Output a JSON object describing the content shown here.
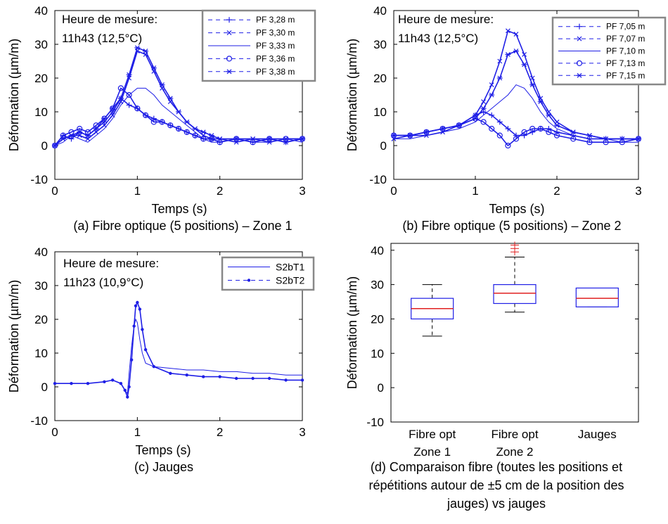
{
  "chart_data": [
    {
      "type": "line",
      "panel": "a",
      "caption": "(a) Fibre optique (5 positions) – Zone 1",
      "annotation": [
        "Heure de mesure:",
        "11h43 (12,5°C)"
      ],
      "xlabel": "Temps (s)",
      "ylabel": "Déformation (µm/m)",
      "xlim": [
        0,
        3
      ],
      "ylim": [
        -10,
        40
      ],
      "xticks": [
        "0",
        "1",
        "2",
        "3"
      ],
      "yticks": [
        "-10",
        "0",
        "10",
        "20",
        "30",
        "40"
      ],
      "legend_position": "top-right",
      "color": "#1f1fe6",
      "series": [
        {
          "name": "PF 3,28 m",
          "marker": "plus",
          "x": [
            0,
            0.1,
            0.2,
            0.3,
            0.4,
            0.5,
            0.6,
            0.7,
            0.8,
            0.9,
            1.0,
            1.1,
            1.2,
            1.3,
            1.4,
            1.5,
            1.6,
            1.7,
            1.8,
            1.9,
            2.0,
            2.2,
            2.4,
            2.6,
            2.8,
            3.0
          ],
          "y": [
            0,
            3,
            2,
            4,
            3,
            5,
            7,
            10,
            14,
            12,
            11,
            9,
            8,
            7,
            6,
            5,
            4,
            3,
            2,
            2,
            1,
            2,
            1,
            2,
            1,
            2
          ]
        },
        {
          "name": "PF 3,30 m",
          "marker": "x",
          "x": [
            0,
            0.1,
            0.2,
            0.3,
            0.4,
            0.5,
            0.6,
            0.7,
            0.8,
            0.9,
            1.0,
            1.1,
            1.2,
            1.3,
            1.4,
            1.5,
            1.6,
            1.7,
            1.8,
            1.9,
            2.0,
            2.2,
            2.4,
            2.6,
            2.8,
            3.0
          ],
          "y": [
            0,
            2,
            3,
            3,
            2,
            4,
            6,
            9,
            13,
            20,
            28,
            27,
            22,
            17,
            13,
            10,
            7,
            5,
            3,
            2,
            2,
            1,
            2,
            2,
            1,
            2
          ]
        },
        {
          "name": "PF 3,33 m",
          "marker": "none",
          "x": [
            0,
            0.1,
            0.2,
            0.3,
            0.4,
            0.5,
            0.6,
            0.7,
            0.8,
            0.9,
            1.0,
            1.1,
            1.2,
            1.3,
            1.4,
            1.5,
            1.6,
            1.7,
            1.8,
            1.9,
            2.0,
            2.2,
            2.4,
            2.6,
            2.8,
            3.0
          ],
          "y": [
            0,
            1,
            3,
            2,
            1,
            3,
            5,
            8,
            12,
            15,
            17,
            17,
            15,
            12,
            10,
            8,
            6,
            4,
            2,
            1,
            1,
            2,
            1,
            1,
            2,
            1
          ]
        },
        {
          "name": "PF 3,36 m",
          "marker": "circle",
          "x": [
            0,
            0.1,
            0.2,
            0.3,
            0.4,
            0.5,
            0.6,
            0.7,
            0.8,
            0.9,
            1.0,
            1.1,
            1.2,
            1.3,
            1.4,
            1.5,
            1.6,
            1.7,
            1.8,
            1.9,
            2.0,
            2.2,
            2.4,
            2.6,
            2.8,
            3.0
          ],
          "y": [
            0,
            3,
            4,
            5,
            4,
            6,
            8,
            11,
            17,
            15,
            11,
            9,
            7,
            7,
            6,
            5,
            4,
            3,
            2,
            2,
            1,
            2,
            1,
            2,
            2,
            2
          ]
        },
        {
          "name": "PF 3,38 m",
          "marker": "asterisk",
          "x": [
            0,
            0.1,
            0.2,
            0.3,
            0.4,
            0.5,
            0.6,
            0.7,
            0.8,
            0.9,
            1.0,
            1.1,
            1.2,
            1.3,
            1.4,
            1.5,
            1.6,
            1.7,
            1.8,
            1.9,
            2.0,
            2.2,
            2.4,
            2.6,
            2.8,
            3.0
          ],
          "y": [
            0,
            2,
            3,
            4,
            3,
            5,
            8,
            11,
            14,
            21,
            29,
            28,
            23,
            18,
            14,
            10,
            7,
            5,
            4,
            3,
            2,
            2,
            2,
            1,
            2,
            2
          ]
        }
      ]
    },
    {
      "type": "line",
      "panel": "b",
      "caption": "(b) Fibre optique (5 positions) – Zone 2",
      "annotation": [
        "Heure de mesure:",
        "11h43 (12,5°C)"
      ],
      "xlabel": "Temps (s)",
      "ylabel": "Déformation (µm/m)",
      "xlim": [
        0,
        3
      ],
      "ylim": [
        -10,
        40
      ],
      "xticks": [
        "0",
        "1",
        "2",
        "3"
      ],
      "yticks": [
        "-10",
        "0",
        "10",
        "20",
        "30",
        "40"
      ],
      "legend_position": "top-right",
      "color": "#1f1fe6",
      "series": [
        {
          "name": "PF 7,05 m",
          "marker": "plus",
          "x": [
            0,
            0.2,
            0.4,
            0.6,
            0.8,
            1.0,
            1.1,
            1.2,
            1.3,
            1.4,
            1.5,
            1.6,
            1.7,
            1.8,
            1.9,
            2.0,
            2.2,
            2.4,
            2.6,
            2.8,
            3.0
          ],
          "y": [
            3,
            3,
            4,
            5,
            6,
            9,
            10,
            9,
            7,
            5,
            3,
            3,
            4,
            5,
            5,
            4,
            3,
            2,
            2,
            2,
            2
          ]
        },
        {
          "name": "PF 7,07 m",
          "marker": "x",
          "x": [
            0,
            0.2,
            0.4,
            0.6,
            0.8,
            1.0,
            1.1,
            1.2,
            1.3,
            1.4,
            1.5,
            1.6,
            1.7,
            1.8,
            1.9,
            2.0,
            2.2,
            2.4,
            2.6,
            2.8,
            3.0
          ],
          "y": [
            2,
            3,
            3,
            4,
            6,
            9,
            13,
            18,
            25,
            34,
            33,
            27,
            20,
            14,
            10,
            7,
            4,
            3,
            2,
            2,
            2
          ]
        },
        {
          "name": "PF 7,10 m",
          "marker": "none",
          "x": [
            0,
            0.2,
            0.4,
            0.6,
            0.8,
            1.0,
            1.1,
            1.2,
            1.3,
            1.4,
            1.5,
            1.6,
            1.7,
            1.8,
            1.9,
            2.0,
            2.2,
            2.4,
            2.6,
            2.8,
            3.0
          ],
          "y": [
            2,
            2,
            3,
            4,
            5,
            7,
            9,
            11,
            13,
            15,
            18,
            17,
            14,
            10,
            7,
            5,
            3,
            2,
            2,
            1,
            1
          ]
        },
        {
          "name": "PF 7,13 m",
          "marker": "circle",
          "x": [
            0,
            0.2,
            0.4,
            0.6,
            0.8,
            1.0,
            1.1,
            1.2,
            1.3,
            1.4,
            1.5,
            1.6,
            1.7,
            1.8,
            1.9,
            2.0,
            2.2,
            2.4,
            2.6,
            2.8,
            3.0
          ],
          "y": [
            3,
            3,
            4,
            5,
            6,
            8,
            7,
            5,
            3,
            0,
            2,
            4,
            5,
            5,
            4,
            3,
            2,
            1,
            1,
            1,
            2
          ]
        },
        {
          "name": "PF 7,15 m",
          "marker": "asterisk",
          "x": [
            0,
            0.2,
            0.4,
            0.6,
            0.8,
            1.0,
            1.1,
            1.2,
            1.3,
            1.4,
            1.5,
            1.6,
            1.7,
            1.8,
            1.9,
            2.0,
            2.2,
            2.4,
            2.6,
            2.8,
            3.0
          ],
          "y": [
            3,
            3,
            4,
            5,
            6,
            8,
            11,
            15,
            20,
            27,
            28,
            24,
            18,
            13,
            9,
            6,
            4,
            3,
            2,
            2,
            2
          ]
        }
      ]
    },
    {
      "type": "line",
      "panel": "c",
      "caption": "(c) Jauges",
      "annotation": [
        "Heure de mesure:",
        "11h23 (10,9°C)"
      ],
      "xlabel": "Temps (s)",
      "ylabel": "Déformation (µm/m)",
      "xlim": [
        0,
        3
      ],
      "ylim": [
        -10,
        40
      ],
      "xticks": [
        "0",
        "1",
        "2",
        "3"
      ],
      "yticks": [
        "-10",
        "0",
        "10",
        "20",
        "30",
        "40"
      ],
      "legend_position": "top-right",
      "color": "#1f1fe6",
      "series": [
        {
          "name": "S2bT1",
          "marker": "none",
          "x": [
            0,
            0.2,
            0.4,
            0.6,
            0.7,
            0.8,
            0.85,
            0.88,
            0.9,
            0.93,
            0.96,
            0.98,
            1.0,
            1.03,
            1.06,
            1.1,
            1.2,
            1.4,
            1.6,
            1.8,
            2.0,
            2.2,
            2.4,
            2.6,
            2.8,
            3.0
          ],
          "y": [
            1,
            1,
            1,
            1.5,
            2,
            1,
            -1,
            -2,
            4,
            12,
            18,
            20,
            19,
            14,
            10,
            7,
            6,
            5.5,
            5,
            5,
            4.5,
            4.5,
            4,
            4,
            3.5,
            3.5
          ]
        },
        {
          "name": "S2bT2",
          "marker": "dot",
          "x": [
            0,
            0.2,
            0.4,
            0.6,
            0.7,
            0.8,
            0.85,
            0.88,
            0.9,
            0.93,
            0.96,
            0.98,
            1.0,
            1.03,
            1.06,
            1.1,
            1.2,
            1.4,
            1.6,
            1.8,
            2.0,
            2.2,
            2.4,
            2.6,
            2.8,
            3.0
          ],
          "y": [
            1,
            1,
            1,
            1.5,
            2,
            1,
            -1,
            -3,
            0,
            8,
            18,
            24,
            25,
            23,
            17,
            11,
            6,
            4,
            3.5,
            3,
            3,
            2.5,
            2.5,
            2.5,
            2,
            2
          ]
        }
      ]
    },
    {
      "type": "box",
      "panel": "d",
      "caption": [
        "(d) Comparaison fibre (toutes les positions et",
        "répétitions autour de ±5 cm de la position des",
        "jauges) vs jauges"
      ],
      "ylabel": "Déformation (µm/m)",
      "ylim": [
        -10,
        42
      ],
      "yticks": [
        "-10",
        "0",
        "10",
        "20",
        "30",
        "40"
      ],
      "categories": [
        [
          "Fibre opt",
          "Zone 1"
        ],
        [
          "Fibre opt",
          "Zone 2"
        ],
        [
          "Jauges"
        ]
      ],
      "box_color": "#1f1fe6",
      "median_color": "#e02020",
      "outlier_color": "#e02020",
      "boxes": [
        {
          "whisker_low": 15,
          "q1": 20,
          "median": 23,
          "q3": 26,
          "whisker_high": 30,
          "outliers": []
        },
        {
          "whisker_low": 22,
          "q1": 24.5,
          "median": 27.5,
          "q3": 30,
          "whisker_high": 38,
          "outliers": [
            39.5,
            40.5,
            41.5
          ]
        },
        {
          "whisker_low": 23.5,
          "q1": 23.5,
          "median": 26,
          "q3": 29,
          "whisker_high": 29,
          "outliers": []
        }
      ]
    }
  ]
}
